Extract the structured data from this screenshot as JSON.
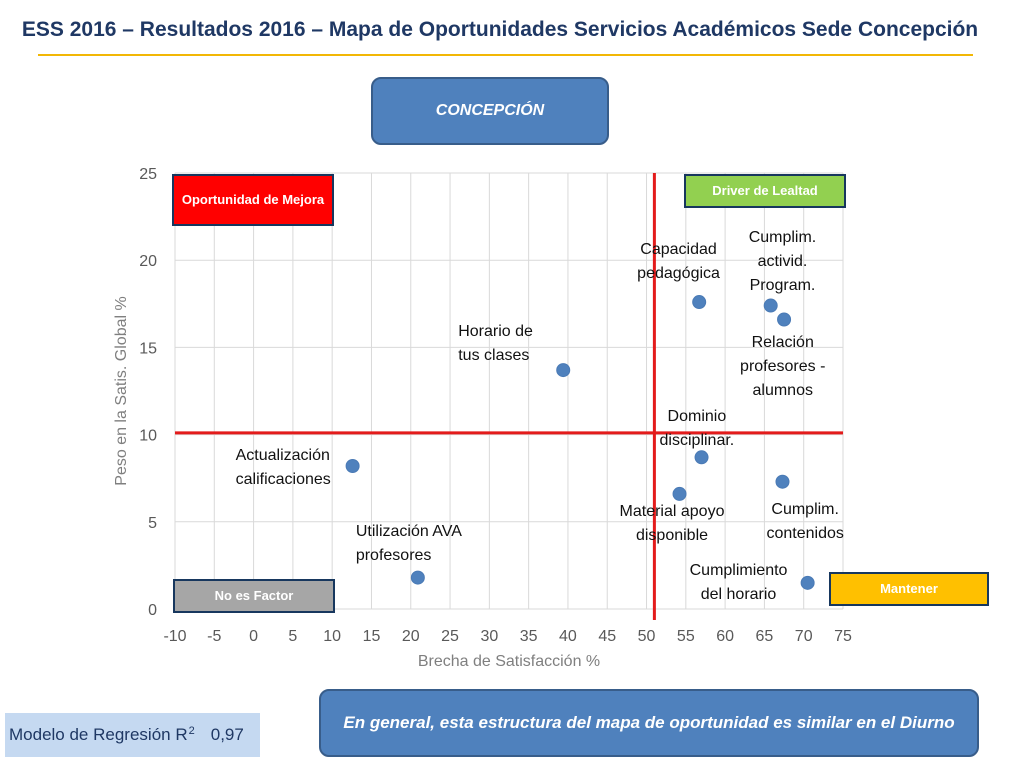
{
  "header": {
    "title": "ESS 2016 – Resultados 2016 – Mapa de Oportunidades Servicios Académicos Sede Concepción"
  },
  "region_button": "CONCEPCIÓN",
  "summary_button": "En general, esta estructura del mapa de oportunidad es similar en el Diurno",
  "quadrants": {
    "top_left": "Oportunidad de Mejora",
    "top_right": "Driver de Lealtad",
    "bottom_left": "No es Factor",
    "bottom_right": "Mantener"
  },
  "model": {
    "label": "Modelo de Regresión R",
    "superscript": "2",
    "value": "0,97"
  },
  "colors": {
    "marker": "#4f81bd",
    "reference_line": "#e31b1b",
    "grid": "#d9d9d9",
    "quad_improve": "#ff0000",
    "quad_loyalty": "#92d050",
    "quad_nofactor": "#a6a6a6",
    "quad_maintain": "#ffc000",
    "button": "#4f81bd"
  },
  "chart_data": {
    "type": "scatter",
    "xlabel": "Brecha de Satisfacción %",
    "ylabel": "Peso en la Satis. Global %",
    "xlim": [
      -10,
      75
    ],
    "ylim": [
      0,
      25
    ],
    "xticks": [
      -10,
      -5,
      0,
      5,
      10,
      15,
      20,
      25,
      30,
      35,
      40,
      45,
      50,
      55,
      60,
      65,
      70,
      75
    ],
    "yticks": [
      0,
      5,
      10,
      15,
      20,
      25
    ],
    "grid": true,
    "reference_lines": {
      "x": 51,
      "y": 10.1
    },
    "points": [
      {
        "label": "Capacidad pedagógica",
        "x": 56.7,
        "y": 17.6
      },
      {
        "label": "Cumplim. activid. Program.",
        "x": 65.8,
        "y": 17.4
      },
      {
        "label": "Relación profesores - alumnos",
        "x": 67.5,
        "y": 16.6
      },
      {
        "label": "Horario de tus clases",
        "x": 39.4,
        "y": 13.7
      },
      {
        "label": "Dominio disciplinar.",
        "x": 57.0,
        "y": 8.7
      },
      {
        "label": "Actualización calificaciones",
        "x": 12.6,
        "y": 8.2
      },
      {
        "label": "Cumplim. contenidos",
        "x": 67.3,
        "y": 7.3
      },
      {
        "label": "Material apoyo disponible",
        "x": 54.2,
        "y": 6.6
      },
      {
        "label": "Utilización AVA profesores",
        "x": 20.9,
        "y": 1.8
      },
      {
        "label": "Cumplimiento del horario",
        "x": 70.5,
        "y": 1.5
      }
    ]
  }
}
